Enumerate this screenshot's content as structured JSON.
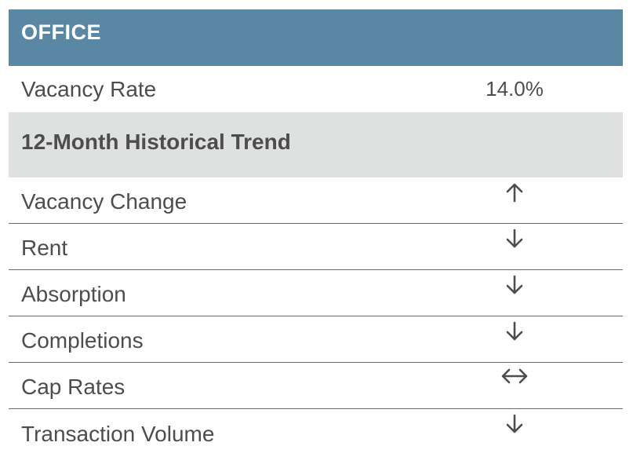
{
  "header": {
    "title": "OFFICE"
  },
  "vacancy": {
    "label": "Vacancy Rate",
    "value": "14.0%"
  },
  "trend_section": {
    "title": "12-Month Historical Trend",
    "rows": [
      {
        "label": "Vacancy Change",
        "direction": "up",
        "icon": "arrow-up-icon"
      },
      {
        "label": "Rent",
        "direction": "down",
        "icon": "arrow-down-icon"
      },
      {
        "label": "Absorption",
        "direction": "down",
        "icon": "arrow-down-icon"
      },
      {
        "label": "Completions",
        "direction": "down",
        "icon": "arrow-down-icon"
      },
      {
        "label": "Cap Rates",
        "direction": "flat",
        "icon": "arrow-left-right-icon"
      },
      {
        "label": "Transaction Volume",
        "direction": "down",
        "icon": "arrow-down-icon"
      }
    ]
  },
  "colors": {
    "header_bg": "#5a87a3",
    "subheader_bg": "#dfe0e0",
    "text": "#4d4d4d"
  }
}
